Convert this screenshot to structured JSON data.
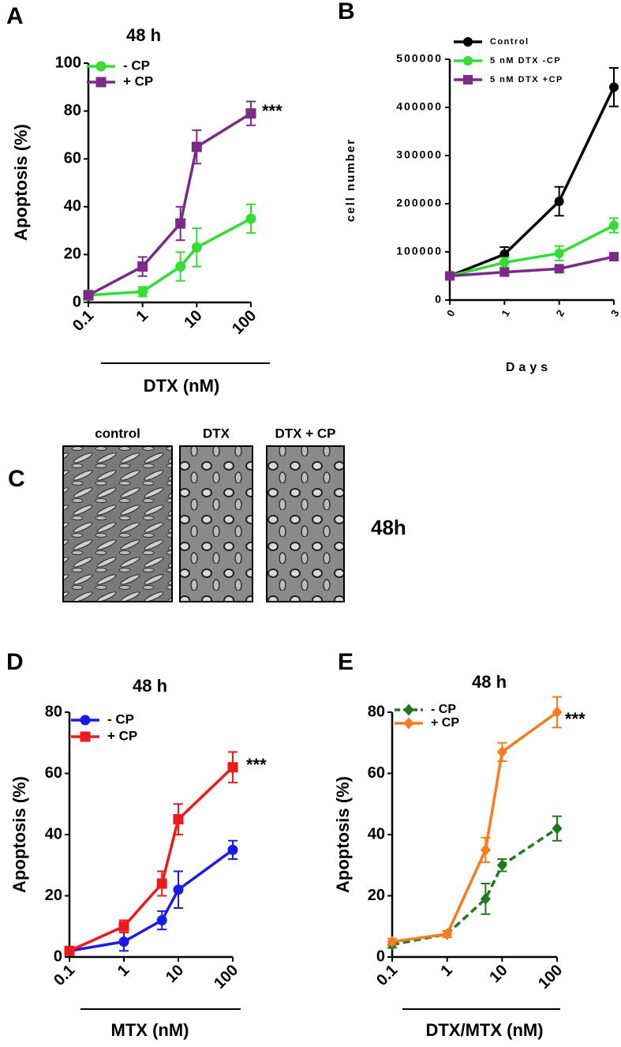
{
  "chart_data": [
    {
      "type": "line",
      "panel": "A",
      "title": "48 h",
      "x_label": "DTX (nM)",
      "y_label": "Apoptosis (%)",
      "annotation": "***",
      "xscale": "log",
      "x": [
        0.1,
        1,
        5,
        10,
        100
      ],
      "xlim": [
        0.1,
        100
      ],
      "xticks": [
        0.1,
        1,
        10,
        100
      ],
      "ylim": [
        0,
        100
      ],
      "yticks": [
        0,
        20,
        40,
        60,
        80,
        100
      ],
      "legend": "upper left",
      "series": [
        {
          "name": "- CP",
          "color": "#33dd33",
          "marker": "circle",
          "values": [
            3,
            4.5,
            15,
            23,
            35
          ],
          "errors": [
            2,
            2,
            6,
            8,
            6
          ]
        },
        {
          "name": "+ CP",
          "color": "#7b2a8a",
          "marker": "square",
          "values": [
            3,
            15,
            33,
            65,
            79
          ],
          "errors": [
            1,
            4,
            7,
            7,
            5
          ]
        }
      ]
    },
    {
      "type": "line",
      "panel": "B",
      "x_label": "Days",
      "y_label": "cell number",
      "xscale": "linear",
      "x": [
        0,
        1,
        2,
        3
      ],
      "xlim": [
        0,
        3
      ],
      "xticks": [
        0,
        1,
        2,
        3
      ],
      "ylim": [
        0,
        500000
      ],
      "yticks": [
        0,
        100000,
        200000,
        300000,
        400000,
        500000
      ],
      "legend": "upper left",
      "series": [
        {
          "name": "Control",
          "color": "#000000",
          "marker": "circle",
          "values": [
            50000,
            95000,
            205000,
            442000
          ],
          "errors": [
            5000,
            15000,
            30000,
            40000
          ]
        },
        {
          "name": "5 nM DTX -CP",
          "color": "#33dd33",
          "marker": "circle",
          "values": [
            50000,
            78000,
            97000,
            155000
          ],
          "errors": [
            5000,
            10000,
            15000,
            15000
          ]
        },
        {
          "name": "5 nM DTX +CP",
          "color": "#7b2a8a",
          "marker": "square",
          "values": [
            50000,
            58000,
            65000,
            90000
          ],
          "errors": [
            5000,
            5000,
            5000,
            5000
          ]
        }
      ]
    },
    {
      "type": "line",
      "panel": "D",
      "title": "48 h",
      "x_label": "MTX (nM)",
      "y_label": "Apoptosis (%)",
      "annotation": "***",
      "xscale": "log",
      "x": [
        0.1,
        1,
        5,
        10,
        100
      ],
      "xlim": [
        0.1,
        100
      ],
      "xticks": [
        0.1,
        1,
        10,
        100
      ],
      "ylim": [
        0,
        80
      ],
      "yticks": [
        0,
        20,
        40,
        60,
        80
      ],
      "legend": "upper left",
      "series": [
        {
          "name": "- CP",
          "color": "#1a1aee",
          "marker": "circle",
          "values": [
            2,
            5,
            12,
            22,
            35
          ],
          "errors": [
            1,
            3,
            3,
            6,
            3
          ]
        },
        {
          "name": "+ CP",
          "color": "#ee1a1a",
          "marker": "square",
          "values": [
            2,
            10,
            24,
            45,
            62
          ],
          "errors": [
            1,
            2,
            4,
            5,
            5
          ]
        }
      ]
    },
    {
      "type": "line",
      "panel": "E",
      "title": "48 h",
      "x_label": "DTX/MTX (nM)",
      "y_label": "Apoptosis (%)",
      "annotation": "***",
      "xscale": "log",
      "x": [
        0.1,
        1,
        5,
        10,
        100
      ],
      "xlim": [
        0.1,
        100
      ],
      "xticks": [
        0.1,
        1,
        10,
        100
      ],
      "ylim": [
        0,
        80
      ],
      "yticks": [
        0,
        20,
        40,
        60,
        80
      ],
      "legend": "upper left",
      "series": [
        {
          "name": "- CP",
          "color": "#1e7a1e",
          "marker": "diamond",
          "dashed": true,
          "values": [
            4,
            7.5,
            19,
            30,
            42
          ],
          "errors": [
            1,
            1,
            5,
            2,
            4
          ]
        },
        {
          "name": "+ CP",
          "color": "#ff7a1a",
          "marker": "diamond",
          "values": [
            5,
            7.5,
            35,
            67,
            80
          ],
          "errors": [
            1,
            1,
            4,
            3,
            5
          ]
        }
      ]
    }
  ],
  "images": {
    "panel": "C",
    "captions": [
      "control",
      "DTX",
      "DTX + CP"
    ],
    "time": "48h"
  }
}
